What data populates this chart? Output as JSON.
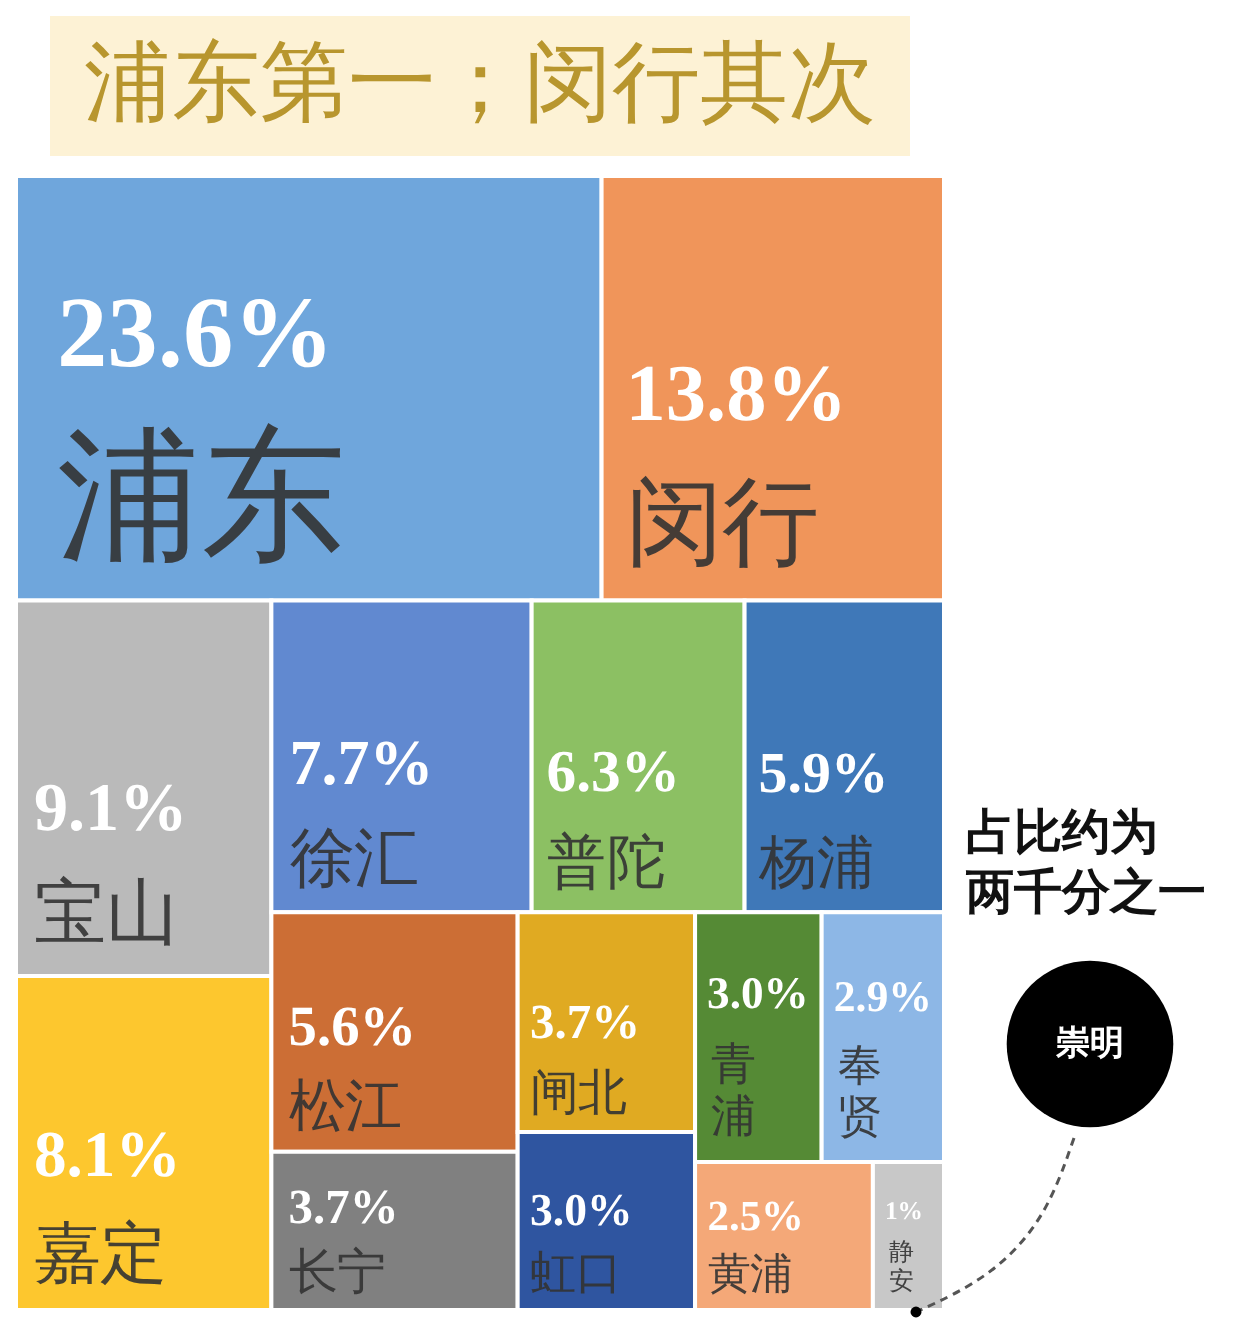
{
  "chart_data": {
    "type": "other",
    "title": "浦东第一；闵行其次",
    "categories": [
      "浦东",
      "闵行",
      "宝山",
      "嘉定",
      "徐汇",
      "普陀",
      "杨浦",
      "松江",
      "长宁",
      "闸北",
      "虹口",
      "青浦",
      "奉贤",
      "黄浦",
      "静安",
      "崇明"
    ],
    "values": [
      23.6,
      13.8,
      9.1,
      8.1,
      7.7,
      6.3,
      5.9,
      5.6,
      3.7,
      3.7,
      3.0,
      3.0,
      2.9,
      2.5,
      1,
      null
    ],
    "value_labels": [
      "23.6%",
      "13.8%",
      "9.1%",
      "8.1%",
      "7.7%",
      "6.3%",
      "5.9%",
      "5.6%",
      "3.7%",
      "3.7%",
      "3.0%",
      "3.0%",
      "2.9%",
      "2.5%",
      "1%",
      null
    ],
    "colors": [
      "#6fa6dc",
      "#f0955a",
      "#bababa",
      "#fdc72e",
      "#6189d0",
      "#8cc063",
      "#3f78b8",
      "#cc6e35",
      "#808080",
      "#e0aa22",
      "#2f55a0",
      "#558a35",
      "#8db7e6",
      "#f4a878",
      "#c8c8c8",
      "#000000"
    ],
    "annotations": [
      "占比约为两千分之一"
    ]
  }
}
